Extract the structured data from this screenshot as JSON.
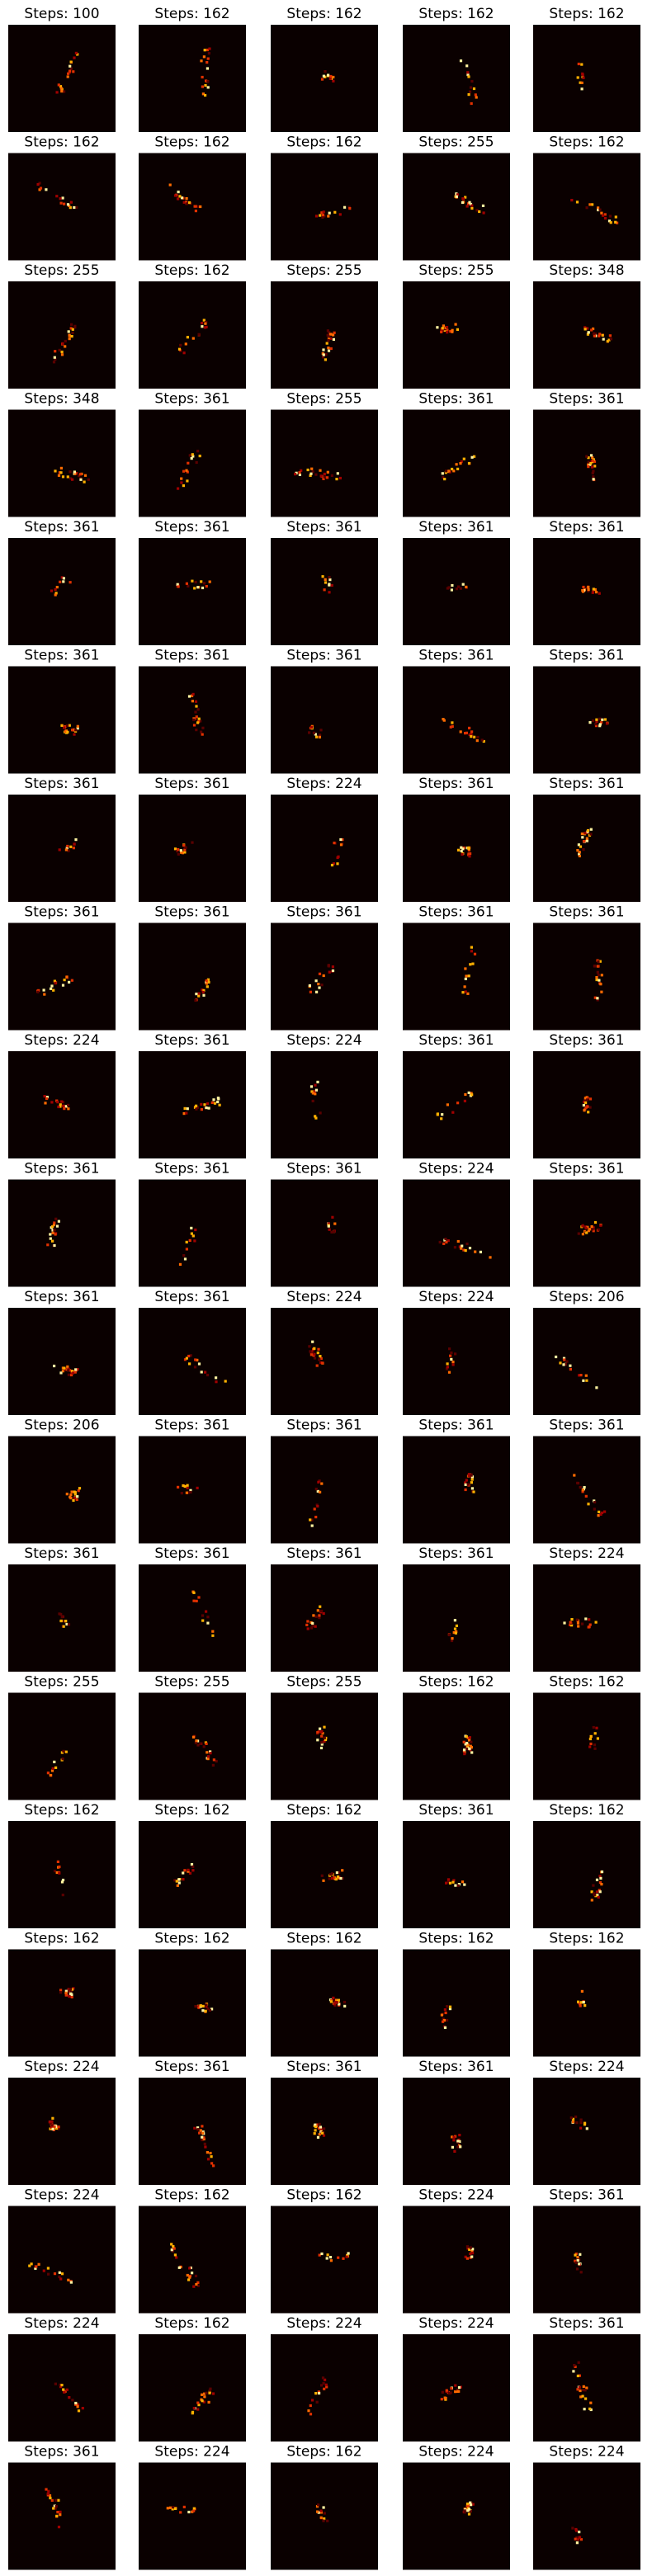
{
  "panels": [
    [
      {
        "title": "Steps: 100"
      },
      {
        "title": "Steps: 162"
      },
      {
        "title": "Steps: 162"
      },
      {
        "title": "Steps: 162"
      },
      {
        "title": "Steps: 162"
      }
    ],
    [
      {
        "title": "Steps: 162"
      },
      {
        "title": "Steps: 162"
      },
      {
        "title": "Steps: 162"
      },
      {
        "title": "Steps: 255"
      },
      {
        "title": "Steps: 162"
      }
    ],
    [
      {
        "title": "Steps: 255"
      },
      {
        "title": "Steps: 162"
      },
      {
        "title": "Steps: 255"
      },
      {
        "title": "Steps: 255"
      },
      {
        "title": "Steps: 348"
      }
    ],
    [
      {
        "title": "Steps: 348"
      },
      {
        "title": "Steps: 361"
      },
      {
        "title": "Steps: 255"
      },
      {
        "title": "Steps: 361"
      },
      {
        "title": "Steps: 361"
      }
    ],
    [
      {
        "title": "Steps: 361"
      },
      {
        "title": "Steps: 361"
      },
      {
        "title": "Steps: 361"
      },
      {
        "title": "Steps: 361"
      },
      {
        "title": "Steps: 361"
      }
    ],
    [
      {
        "title": "Steps: 361"
      },
      {
        "title": "Steps: 361"
      },
      {
        "title": "Steps: 361"
      },
      {
        "title": "Steps: 361"
      },
      {
        "title": "Steps: 361"
      }
    ],
    [
      {
        "title": "Steps: 361"
      },
      {
        "title": "Steps: 361"
      },
      {
        "title": "Steps: 224"
      },
      {
        "title": "Steps: 361"
      },
      {
        "title": "Steps: 361"
      }
    ],
    [
      {
        "title": "Steps: 361"
      },
      {
        "title": "Steps: 361"
      },
      {
        "title": "Steps: 361"
      },
      {
        "title": "Steps: 361"
      },
      {
        "title": "Steps: 361"
      }
    ],
    [
      {
        "title": "Steps: 224"
      },
      {
        "title": "Steps: 361"
      },
      {
        "title": "Steps: 224"
      },
      {
        "title": "Steps: 361"
      },
      {
        "title": "Steps: 361"
      }
    ],
    [
      {
        "title": "Steps: 361"
      },
      {
        "title": "Steps: 361"
      },
      {
        "title": "Steps: 361"
      },
      {
        "title": "Steps: 224"
      },
      {
        "title": "Steps: 361"
      }
    ],
    [
      {
        "title": "Steps: 361"
      },
      {
        "title": "Steps: 361"
      },
      {
        "title": "Steps: 224"
      },
      {
        "title": "Steps: 224"
      },
      {
        "title": "Steps: 206"
      }
    ],
    [
      {
        "title": "Steps: 206"
      },
      {
        "title": "Steps: 361"
      },
      {
        "title": "Steps: 361"
      },
      {
        "title": "Steps: 361"
      },
      {
        "title": "Steps: 361"
      }
    ],
    [
      {
        "title": "Steps: 361"
      },
      {
        "title": "Steps: 361"
      },
      {
        "title": "Steps: 361"
      },
      {
        "title": "Steps: 361"
      },
      {
        "title": "Steps: 224"
      }
    ],
    [
      {
        "title": "Steps: 255"
      },
      {
        "title": "Steps: 255"
      },
      {
        "title": "Steps: 255"
      },
      {
        "title": "Steps: 162"
      },
      {
        "title": "Steps: 162"
      }
    ],
    [
      {
        "title": "Steps: 162"
      },
      {
        "title": "Steps: 162"
      },
      {
        "title": "Steps: 162"
      },
      {
        "title": "Steps: 361"
      },
      {
        "title": "Steps: 162"
      }
    ],
    [
      {
        "title": "Steps: 162"
      },
      {
        "title": "Steps: 162"
      },
      {
        "title": "Steps: 162"
      },
      {
        "title": "Steps: 162"
      },
      {
        "title": "Steps: 162"
      }
    ],
    [
      {
        "title": "Steps: 224"
      },
      {
        "title": "Steps: 361"
      },
      {
        "title": "Steps: 361"
      },
      {
        "title": "Steps: 361"
      },
      {
        "title": "Steps: 224"
      }
    ],
    [
      {
        "title": "Steps: 224"
      },
      {
        "title": "Steps: 162"
      },
      {
        "title": "Steps: 162"
      },
      {
        "title": "Steps: 224"
      },
      {
        "title": "Steps: 361"
      }
    ],
    [
      {
        "title": "Steps: 224"
      },
      {
        "title": "Steps: 162"
      },
      {
        "title": "Steps: 224"
      },
      {
        "title": "Steps: 224"
      },
      {
        "title": "Steps: 361"
      }
    ],
    [
      {
        "title": "Steps: 361"
      },
      {
        "title": "Steps: 224"
      },
      {
        "title": "Steps: 162"
      },
      {
        "title": "Steps: 224"
      },
      {
        "title": "Steps: 224"
      }
    ]
  ]
}
